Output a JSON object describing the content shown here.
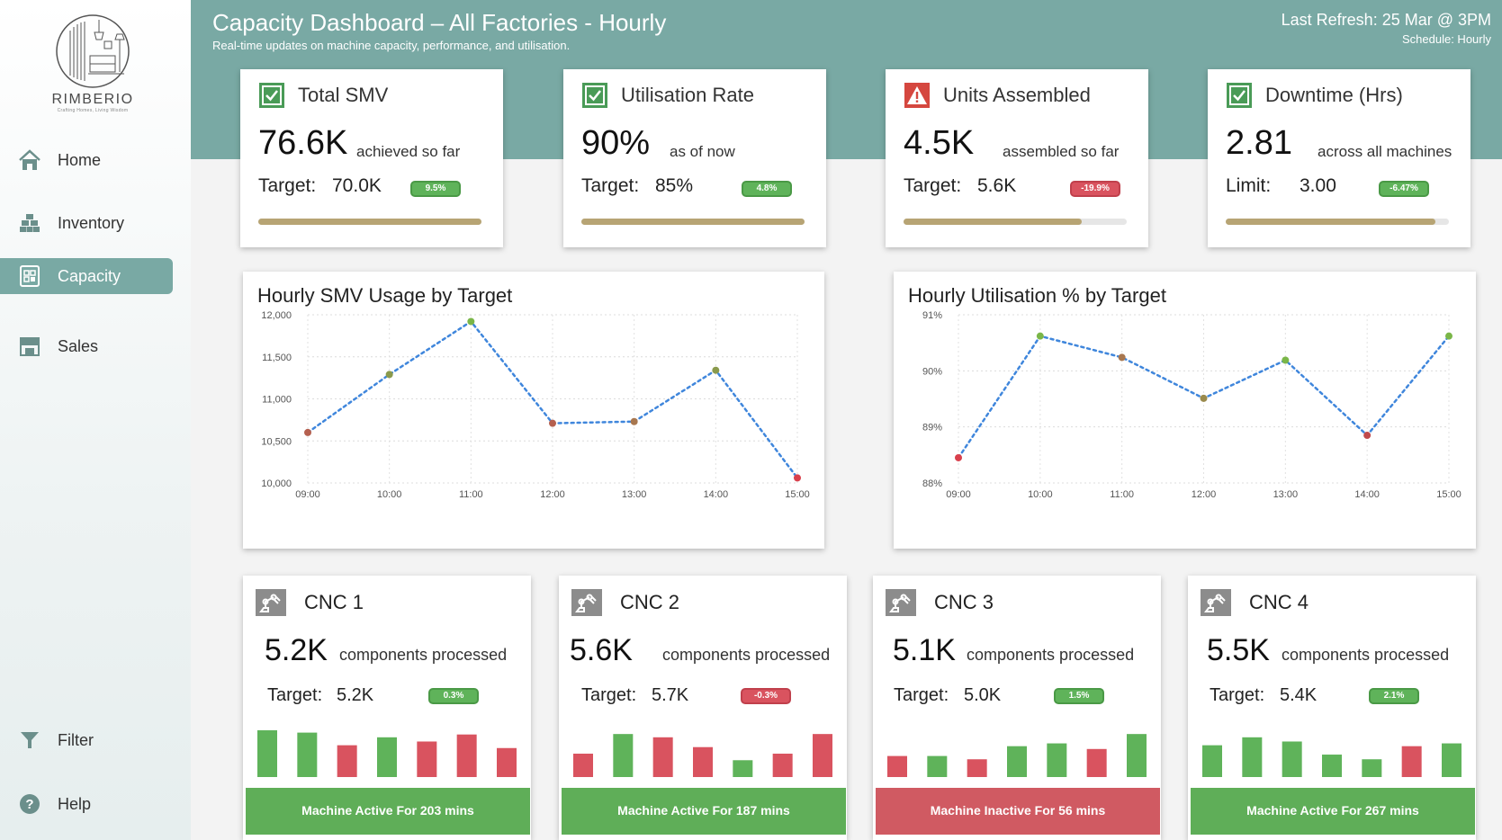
{
  "brand": {
    "name": "RIMBERIO",
    "tagline": "Crafting Homes, Living Wisdom"
  },
  "nav": [
    {
      "label": "Home",
      "icon": "home-icon",
      "active": false
    },
    {
      "label": "Inventory",
      "icon": "inventory-icon",
      "active": false
    },
    {
      "label": "Capacity",
      "icon": "capacity-icon",
      "active": true
    },
    {
      "label": "Sales",
      "icon": "sales-icon",
      "active": false
    }
  ],
  "nav_bottom": [
    {
      "label": "Filter",
      "icon": "filter-icon"
    },
    {
      "label": "Help",
      "icon": "help-icon"
    }
  ],
  "header": {
    "title": "Capacity Dashboard – All Factories - Hourly",
    "subtitle": "Real-time updates on machine capacity, performance, and utilisation.",
    "refresh": "Last Refresh: 25 Mar @ 3PM",
    "schedule": "Schedule: Hourly"
  },
  "colors": {
    "accent": "#79a9a4",
    "positive": "#5fb35a",
    "negative": "#d9535f",
    "progress": "#b7a474"
  },
  "kpis": [
    {
      "title": "Total SMV",
      "status": "ok",
      "value": "76.6K",
      "desc": "achieved so far",
      "target_label": "Target:",
      "target": "70.0K",
      "delta": "9.5%",
      "delta_sign": "pos",
      "progress": 1.0
    },
    {
      "title": "Utilisation Rate",
      "status": "ok",
      "value": "90%",
      "desc": "as of now",
      "target_label": "Target:",
      "target": "85%",
      "delta": "4.8%",
      "delta_sign": "pos",
      "progress": 1.0
    },
    {
      "title": "Units Assembled",
      "status": "warn",
      "value": "4.5K",
      "desc": "assembled so far",
      "target_label": "Target:",
      "target": "5.6K",
      "delta": "-19.9%",
      "delta_sign": "neg",
      "progress": 0.8
    },
    {
      "title": "Downtime (Hrs)",
      "status": "ok",
      "value": "2.81",
      "desc": "across all machines",
      "target_label": "Limit:",
      "target": "3.00",
      "delta": "-6.47%",
      "delta_sign": "pos",
      "progress": 0.94
    }
  ],
  "chart_data": [
    {
      "type": "line",
      "title": "Hourly SMV Usage by Target",
      "x": [
        "09:00",
        "10:00",
        "11:00",
        "12:00",
        "13:00",
        "14:00",
        "15:00"
      ],
      "values": [
        10600,
        11290,
        11920,
        10710,
        10730,
        11340,
        10060
      ],
      "point_colors": [
        "#b5604f",
        "#8a9a4c",
        "#7ab648",
        "#b5604f",
        "#a8774f",
        "#8a9a4c",
        "#d9404c"
      ],
      "yticks": [
        10000,
        10500,
        11000,
        11500,
        12000
      ],
      "ytick_labels": [
        "10,000",
        "10,500",
        "11,000",
        "11,500",
        "12,000"
      ],
      "ylim": [
        10000,
        12000
      ],
      "grid": true,
      "line_style": "dotted"
    },
    {
      "type": "line",
      "title": "Hourly Utilisation % by Target",
      "x": [
        "09:00",
        "10:00",
        "11:00",
        "12:00",
        "13:00",
        "14:00",
        "15:00"
      ],
      "values": [
        88.45,
        90.62,
        90.24,
        89.51,
        90.19,
        88.85,
        90.62
      ],
      "point_colors": [
        "#d9404c",
        "#7ab648",
        "#a8774f",
        "#9a8a4c",
        "#7ab648",
        "#c04a4c",
        "#7ab648"
      ],
      "yticks": [
        88,
        89,
        90,
        91
      ],
      "ytick_labels": [
        "88%",
        "89%",
        "90%",
        "91%"
      ],
      "ylim": [
        88,
        91
      ],
      "grid": true,
      "line_style": "dotted"
    }
  ],
  "machines": [
    {
      "name": "CNC 1",
      "value": "5.2K",
      "desc": "components processed",
      "target_label": "Target:",
      "target": "5.2K",
      "delta": "0.3%",
      "delta_sign": "pos",
      "bars": [
        {
          "v": 1.0,
          "c": "g"
        },
        {
          "v": 0.95,
          "c": "g"
        },
        {
          "v": 0.68,
          "c": "r"
        },
        {
          "v": 0.85,
          "c": "g"
        },
        {
          "v": 0.76,
          "c": "r"
        },
        {
          "v": 0.91,
          "c": "r"
        },
        {
          "v": 0.62,
          "c": "r"
        }
      ],
      "status": "Machine Active For 203 mins",
      "active": true
    },
    {
      "name": "CNC 2",
      "value": "5.6K",
      "desc": "components processed",
      "target_label": "Target:",
      "target": "5.7K",
      "delta": "-0.3%",
      "delta_sign": "neg",
      "bars": [
        {
          "v": 0.5,
          "c": "r"
        },
        {
          "v": 0.92,
          "c": "g"
        },
        {
          "v": 0.85,
          "c": "r"
        },
        {
          "v": 0.64,
          "c": "r"
        },
        {
          "v": 0.36,
          "c": "g"
        },
        {
          "v": 0.5,
          "c": "r"
        },
        {
          "v": 0.92,
          "c": "r"
        }
      ],
      "status": "Machine Active For 187 mins",
      "active": true
    },
    {
      "name": "CNC 3",
      "value": "5.1K",
      "desc": "components processed",
      "target_label": "Target:",
      "target": "5.0K",
      "delta": "1.5%",
      "delta_sign": "pos",
      "bars": [
        {
          "v": 0.45,
          "c": "r"
        },
        {
          "v": 0.45,
          "c": "g"
        },
        {
          "v": 0.38,
          "c": "r"
        },
        {
          "v": 0.66,
          "c": "g"
        },
        {
          "v": 0.72,
          "c": "g"
        },
        {
          "v": 0.6,
          "c": "r"
        },
        {
          "v": 0.92,
          "c": "g"
        }
      ],
      "status": "Machine Inactive For 56 mins",
      "active": false
    },
    {
      "name": "CNC 4",
      "value": "5.5K",
      "desc": "components processed",
      "target_label": "Target:",
      "target": "5.4K",
      "delta": "2.1%",
      "delta_sign": "pos",
      "bars": [
        {
          "v": 0.68,
          "c": "g"
        },
        {
          "v": 0.85,
          "c": "g"
        },
        {
          "v": 0.76,
          "c": "g"
        },
        {
          "v": 0.48,
          "c": "g"
        },
        {
          "v": 0.38,
          "c": "g"
        },
        {
          "v": 0.66,
          "c": "r"
        },
        {
          "v": 0.72,
          "c": "g"
        }
      ],
      "status": "Machine Active For 267 mins",
      "active": true
    }
  ]
}
